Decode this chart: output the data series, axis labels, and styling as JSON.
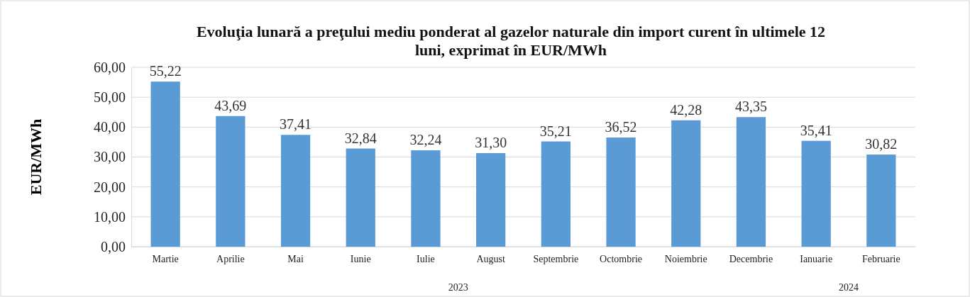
{
  "chart_data": {
    "type": "bar",
    "title": "Evoluţia lunară a preţului mediu ponderat al gazelor naturale din import curent în ultimele 12 luni, exprimat în EUR/MWh",
    "ylabel": "EUR/MWh",
    "categories": [
      "Martie",
      "Aprilie",
      "Mai",
      "Iunie",
      "Iulie",
      "August",
      "Septembrie",
      "Octombrie",
      "Noiembrie",
      "Decembrie",
      "Ianuarie",
      "Februarie"
    ],
    "values": [
      55.22,
      43.69,
      37.41,
      32.84,
      32.24,
      31.3,
      35.21,
      36.52,
      42.28,
      43.35,
      35.41,
      30.82
    ],
    "color": "#5b9bd5",
    "ylim": [
      0,
      60
    ],
    "yticks": [
      {
        "value": 0,
        "label": "0,00"
      },
      {
        "value": 10,
        "label": "10,00"
      },
      {
        "value": 20,
        "label": "20,00"
      },
      {
        "value": 30,
        "label": "30,00"
      },
      {
        "value": 40,
        "label": "40,00"
      },
      {
        "value": 50,
        "label": "50,00"
      },
      {
        "value": 60,
        "label": "60,00"
      }
    ],
    "grid": "y",
    "value_labels": [
      "55,22",
      "43,69",
      "37,41",
      "32,84",
      "32,24",
      "31,30",
      "35,21",
      "36,52",
      "42,28",
      "43,35",
      "35,41",
      "30,82"
    ],
    "annotations": [
      "2023",
      "2024"
    ]
  }
}
